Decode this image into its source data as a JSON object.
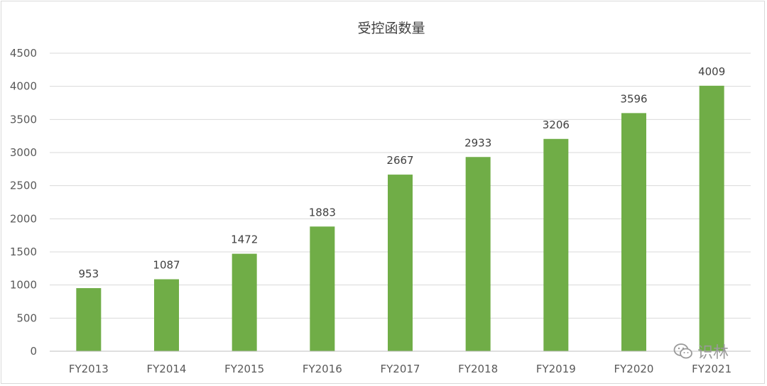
{
  "chart_data": {
    "type": "bar",
    "title": "受控函数量",
    "categories": [
      "FY2013",
      "FY2014",
      "FY2015",
      "FY2016",
      "FY2017",
      "FY2018",
      "FY2019",
      "FY2020",
      "FY2021"
    ],
    "values": [
      953,
      1087,
      1472,
      1883,
      2667,
      2933,
      3206,
      3596,
      4009
    ],
    "ylim": [
      0,
      4500
    ],
    "yticks": [
      0,
      500,
      1000,
      1500,
      2000,
      2500,
      3000,
      3500,
      4000,
      4500
    ],
    "grid": true,
    "legend": "none",
    "bar_color": "#70ad47"
  },
  "watermark": {
    "icon": "wechat-icon",
    "text": "识林"
  }
}
